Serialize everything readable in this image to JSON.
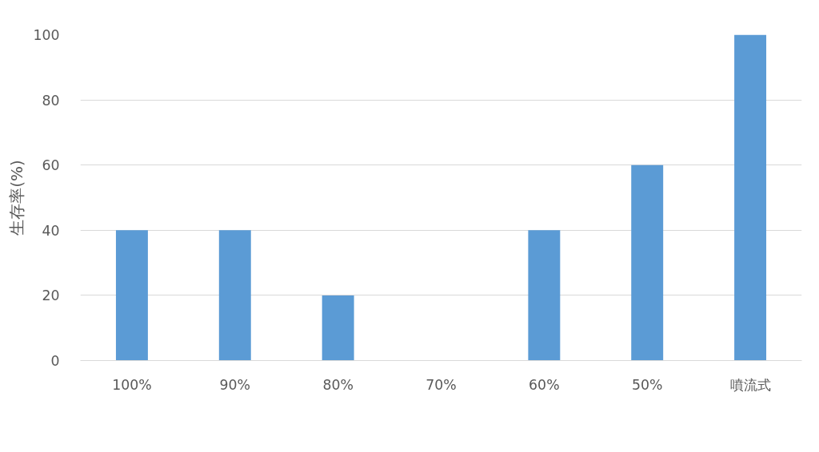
{
  "chart_data": {
    "type": "bar",
    "ylabel": "生存率(%)",
    "categories": [
      "100%",
      "90%",
      "80%",
      "70%",
      "60%",
      "50%",
      "噴流式"
    ],
    "values": [
      40,
      40,
      20,
      0,
      40,
      60,
      100
    ],
    "color": "#5b9bd5",
    "ylim": [
      0,
      100
    ],
    "yticks": [
      0,
      20,
      40,
      60,
      80,
      100
    ],
    "grid": "y"
  }
}
